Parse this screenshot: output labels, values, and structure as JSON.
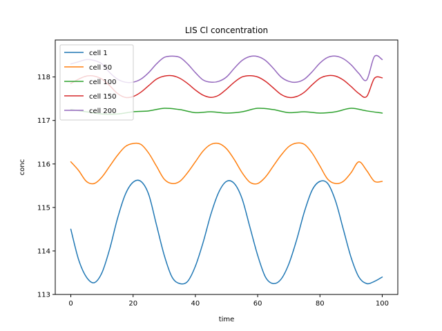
{
  "chart_data": {
    "type": "line",
    "title": "LIS Cl concentration",
    "xlabel": "time",
    "ylabel": "conc",
    "xlim": [
      -5,
      105
    ],
    "ylim": [
      113,
      118.85
    ],
    "xticks": [
      0,
      20,
      40,
      60,
      80,
      100
    ],
    "yticks": [
      113,
      114,
      115,
      116,
      117,
      118
    ],
    "legend_position": "upper-left",
    "grid": false,
    "series": [
      {
        "name": "cell 1",
        "color": "#1f77b4",
        "x": [
          0,
          2.5,
          5,
          7.5,
          10,
          12.5,
          15,
          17.5,
          20,
          22.5,
          25,
          27.5,
          30,
          32.5,
          35,
          37.5,
          40,
          42.5,
          45,
          47.5,
          50,
          52.5,
          55,
          57.5,
          60,
          62.5,
          65,
          67.5,
          70,
          72.5,
          75,
          77.5,
          80,
          82.5,
          85,
          87.5,
          90,
          92.5,
          95,
          97.5,
          100
        ],
        "y": [
          114.5,
          113.8,
          113.4,
          113.27,
          113.5,
          114.05,
          114.75,
          115.3,
          115.58,
          115.6,
          115.3,
          114.6,
          113.9,
          113.4,
          113.25,
          113.3,
          113.65,
          114.2,
          114.85,
          115.35,
          115.6,
          115.55,
          115.2,
          114.55,
          113.9,
          113.4,
          113.25,
          113.35,
          113.7,
          114.25,
          114.9,
          115.4,
          115.6,
          115.55,
          115.15,
          114.5,
          113.85,
          113.4,
          113.25,
          113.3,
          113.4
        ]
      },
      {
        "name": "cell 50",
        "color": "#ff7f0e",
        "x": [
          0,
          2.5,
          5,
          7.5,
          10,
          12.5,
          15,
          17.5,
          20,
          22.5,
          25,
          27.5,
          30,
          32.5,
          35,
          37.5,
          40,
          42.5,
          45,
          47.5,
          50,
          52.5,
          55,
          57.5,
          60,
          62.5,
          65,
          67.5,
          70,
          72.5,
          75,
          77.5,
          80,
          82.5,
          85,
          87.5,
          90,
          92.5,
          95,
          97.5,
          100
        ],
        "y": [
          116.05,
          115.85,
          115.6,
          115.55,
          115.7,
          115.95,
          116.2,
          116.4,
          116.47,
          116.45,
          116.25,
          115.95,
          115.65,
          115.55,
          115.6,
          115.8,
          116.05,
          116.3,
          116.45,
          116.47,
          116.35,
          116.1,
          115.8,
          115.58,
          115.55,
          115.7,
          115.95,
          116.2,
          116.4,
          116.48,
          116.45,
          116.25,
          115.95,
          115.65,
          115.55,
          115.6,
          115.8,
          116.05,
          115.85,
          115.6,
          115.6
        ]
      },
      {
        "name": "cell 100",
        "color": "#2ca02c",
        "x": [
          0,
          5,
          10,
          15,
          20,
          25,
          30,
          35,
          40,
          45,
          50,
          55,
          60,
          65,
          70,
          75,
          80,
          85,
          90,
          95,
          100
        ],
        "y": [
          117.25,
          117.2,
          117.15,
          117.15,
          117.2,
          117.22,
          117.28,
          117.25,
          117.18,
          117.2,
          117.17,
          117.2,
          117.28,
          117.25,
          117.18,
          117.2,
          117.17,
          117.2,
          117.28,
          117.22,
          117.17
        ]
      },
      {
        "name": "cell 150",
        "color": "#d62728",
        "x": [
          0,
          2.5,
          5,
          7.5,
          10,
          12.5,
          15,
          17.5,
          20,
          22.5,
          25,
          27.5,
          30,
          32.5,
          35,
          37.5,
          40,
          42.5,
          45,
          47.5,
          50,
          52.5,
          55,
          57.5,
          60,
          62.5,
          65,
          67.5,
          70,
          72.5,
          75,
          77.5,
          80,
          82.5,
          85,
          87.5,
          90,
          92.5,
          95,
          97.5,
          100
        ],
        "y": [
          117.85,
          117.95,
          118.02,
          118.02,
          117.95,
          117.8,
          117.62,
          117.53,
          117.55,
          117.65,
          117.8,
          117.95,
          118.02,
          118.03,
          117.97,
          117.85,
          117.7,
          117.58,
          117.53,
          117.58,
          117.72,
          117.88,
          118.0,
          118.03,
          118.0,
          117.9,
          117.75,
          117.6,
          117.53,
          117.55,
          117.65,
          117.82,
          117.97,
          118.03,
          118.02,
          117.93,
          117.78,
          117.62,
          117.55,
          117.97,
          117.98
        ]
      },
      {
        "name": "cell 200",
        "color": "#9467bd",
        "x": [
          0,
          2.5,
          5,
          7.5,
          10,
          12.5,
          15,
          17.5,
          20,
          22.5,
          25,
          27.5,
          30,
          32.5,
          35,
          37.5,
          40,
          42.5,
          45,
          47.5,
          50,
          52.5,
          55,
          57.5,
          60,
          62.5,
          65,
          67.5,
          70,
          72.5,
          75,
          77.5,
          80,
          82.5,
          85,
          87.5,
          90,
          92.5,
          95,
          97.5,
          100
        ],
        "y": [
          118.3,
          118.35,
          118.4,
          118.38,
          118.3,
          118.1,
          117.95,
          117.88,
          117.88,
          117.95,
          118.1,
          118.3,
          118.45,
          118.48,
          118.45,
          118.3,
          118.1,
          117.93,
          117.88,
          117.9,
          118.0,
          118.2,
          118.38,
          118.47,
          118.47,
          118.38,
          118.2,
          118.0,
          117.9,
          117.88,
          117.95,
          118.12,
          118.32,
          118.45,
          118.48,
          118.42,
          118.28,
          118.08,
          117.93,
          118.47,
          118.4
        ]
      }
    ]
  }
}
